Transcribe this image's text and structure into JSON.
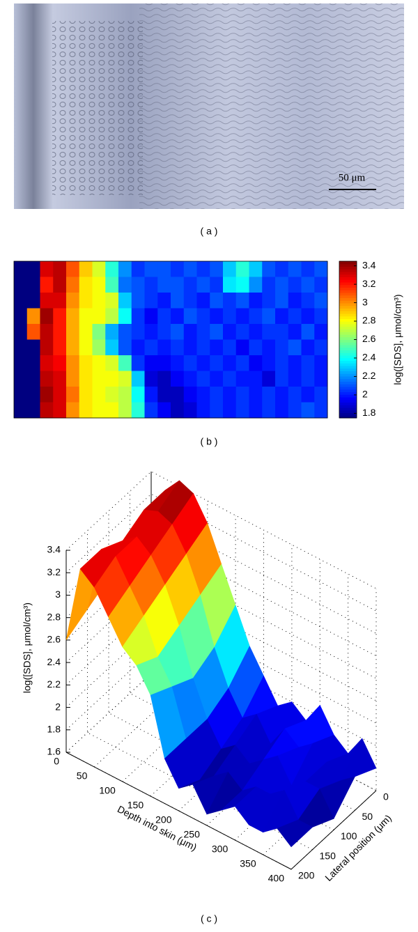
{
  "figure": {
    "panel_a": {
      "label": "( a )",
      "scale_bar": "50 μm"
    }
  },
  "chart_data": [
    {
      "type": "heatmap",
      "panel_label": "( b )",
      "colormap": "jet",
      "clim": [
        1.75,
        3.45
      ],
      "colorbar_label": "log([SDS], μmol/cm³)",
      "cticks": [
        1.8,
        2,
        2.2,
        2.4,
        2.6,
        2.8,
        3,
        3.2,
        3.4
      ],
      "values": [
        [
          1.75,
          1.75,
          3.3,
          3.35,
          3.1,
          2.9,
          2.75,
          2.45,
          2.2,
          2.05,
          2.1,
          2.1,
          2.05,
          2.1,
          2.05,
          2.1,
          2.3,
          2.45,
          2.3,
          2.1,
          2.05,
          2.1,
          2.05,
          2.1
        ],
        [
          1.75,
          1.75,
          3.2,
          3.35,
          3.05,
          2.85,
          2.8,
          2.5,
          2.15,
          2.1,
          2.05,
          2.1,
          2.1,
          2.05,
          2.1,
          2.05,
          2.35,
          2.4,
          2.2,
          2.05,
          2.1,
          2.05,
          2.1,
          2.05
        ],
        [
          1.75,
          1.75,
          3.3,
          3.3,
          3.0,
          2.85,
          2.8,
          2.75,
          2.3,
          2.1,
          2.05,
          2.0,
          2.1,
          2.05,
          2.0,
          2.1,
          2.05,
          2.1,
          2.0,
          2.05,
          2.1,
          2.0,
          2.05,
          2.1
        ],
        [
          1.75,
          3.0,
          3.4,
          3.2,
          2.95,
          2.8,
          2.8,
          2.7,
          2.4,
          2.05,
          1.95,
          2.05,
          2.0,
          2.1,
          2.05,
          2.0,
          2.05,
          2.0,
          2.05,
          2.1,
          2.0,
          2.05,
          2.0,
          2.05
        ],
        [
          1.75,
          3.1,
          3.35,
          3.2,
          2.95,
          2.8,
          2.6,
          2.25,
          2.1,
          2.05,
          2.0,
          2.05,
          2.1,
          2.0,
          2.05,
          2.1,
          2.0,
          2.05,
          2.0,
          2.05,
          2.05,
          2.0,
          2.1,
          2.0
        ],
        [
          1.75,
          1.75,
          3.35,
          3.2,
          2.95,
          2.8,
          2.65,
          2.3,
          2.1,
          2.0,
          2.05,
          2.0,
          2.05,
          2.0,
          2.05,
          2.0,
          2.05,
          1.95,
          2.05,
          2.0,
          2.05,
          2.1,
          2.0,
          2.05
        ],
        [
          1.75,
          1.75,
          3.3,
          3.25,
          3.0,
          2.85,
          2.8,
          2.75,
          2.5,
          2.05,
          1.95,
          1.95,
          2.0,
          2.05,
          2.0,
          2.05,
          2.0,
          2.05,
          1.95,
          2.0,
          2.05,
          2.0,
          2.05,
          2.0
        ],
        [
          1.75,
          1.75,
          3.35,
          3.3,
          3.0,
          2.85,
          2.8,
          2.8,
          2.75,
          2.3,
          1.9,
          1.85,
          1.95,
          2.0,
          2.05,
          2.0,
          2.05,
          2.0,
          2.0,
          1.9,
          2.05,
          2.0,
          2.05,
          2.0
        ],
        [
          1.75,
          1.75,
          3.4,
          3.3,
          3.05,
          2.85,
          2.8,
          2.75,
          2.7,
          2.4,
          2.0,
          1.85,
          1.85,
          1.95,
          2.0,
          2.05,
          2.0,
          2.05,
          2.0,
          2.05,
          2.0,
          2.05,
          2.0,
          2.05
        ],
        [
          1.75,
          1.75,
          3.35,
          3.3,
          3.0,
          2.85,
          2.8,
          2.8,
          2.7,
          2.45,
          2.05,
          1.95,
          1.85,
          1.9,
          2.0,
          2.05,
          2.0,
          2.05,
          2.0,
          2.05,
          2.0,
          2.05,
          2.1,
          2.05
        ]
      ]
    },
    {
      "type": "surface",
      "panel_label": "( c )",
      "colormap": "jet",
      "clim": [
        1.75,
        3.45
      ],
      "xlabel": "Depth into skin (μm)",
      "ylabel": "Lateral position (μm)",
      "zlabel": "log([SDS], μmol/cm³)",
      "x": [
        0,
        25,
        50,
        75,
        100,
        125,
        150,
        175,
        200,
        225,
        250,
        275,
        300,
        325,
        350,
        375,
        400
      ],
      "y": [
        0,
        50,
        100,
        150,
        200
      ],
      "xlim": [
        0,
        400
      ],
      "ylim": [
        0,
        200
      ],
      "zlim": [
        1.6,
        3.4
      ],
      "xticks": [
        0,
        50,
        100,
        150,
        200,
        250,
        300,
        350,
        400
      ],
      "yticks": [
        0,
        50,
        100,
        150,
        200
      ],
      "zticks": [
        1.6,
        1.8,
        2,
        2.2,
        2.4,
        2.6,
        2.8,
        3,
        3.2,
        3.4
      ],
      "values": [
        [
          3.0,
          3.3,
          3.45,
          3.4,
          3.2,
          2.9,
          2.6,
          2.3,
          2.1,
          1.9,
          2.0,
          1.9,
          2.1,
          1.9,
          1.8,
          2.0,
          1.8
        ],
        [
          2.9,
          3.3,
          3.35,
          3.3,
          3.1,
          2.8,
          2.4,
          2.1,
          1.9,
          2.0,
          1.8,
          2.0,
          1.9,
          2.0,
          1.9,
          1.8,
          1.9
        ],
        [
          2.8,
          3.2,
          3.3,
          3.2,
          3.0,
          2.7,
          2.3,
          2.0,
          1.8,
          1.9,
          1.8,
          1.9,
          2.0,
          1.8,
          1.9,
          1.9,
          1.7
        ],
        [
          2.7,
          3.3,
          3.3,
          3.1,
          2.9,
          2.6,
          2.4,
          2.0,
          1.7,
          1.8,
          1.9,
          1.8,
          1.9,
          1.9,
          2.0,
          1.8,
          1.8
        ],
        [
          2.6,
          3.3,
          3.2,
          3.0,
          2.8,
          2.7,
          2.5,
          2.0,
          1.8,
          1.9,
          1.7,
          1.8,
          1.9,
          1.8,
          1.8,
          1.9,
          1.8
        ]
      ]
    }
  ]
}
